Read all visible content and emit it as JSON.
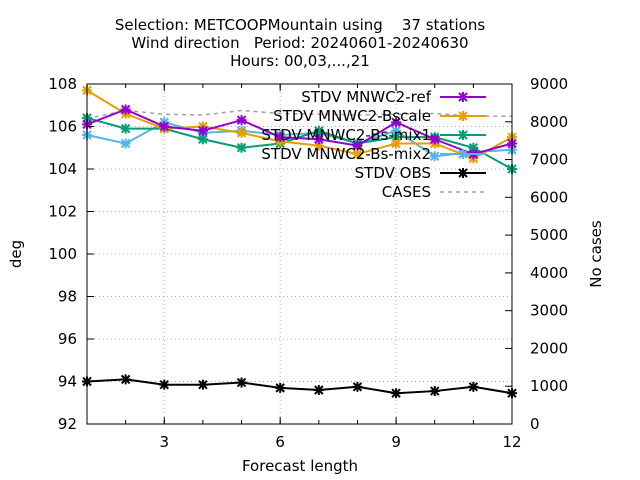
{
  "chart_data": {
    "type": "line",
    "title": [
      "Selection: METCOOPMountain using    37 stations",
      "Wind direction   Period: 20240601-20240630",
      "Hours: 00,03,...,21"
    ],
    "xlabel": "Forecast length",
    "ylabel": "deg",
    "y2label": "No cases",
    "xlim": [
      1,
      12
    ],
    "ylim": [
      92,
      108
    ],
    "y2lim": [
      0,
      9000
    ],
    "xticks": [
      "3",
      "6",
      "9",
      "12"
    ],
    "yticks": [
      "92",
      "94",
      "96",
      "98",
      "100",
      "102",
      "104",
      "106",
      "108"
    ],
    "y2ticks": [
      "0",
      "1000",
      "2000",
      "3000",
      "4000",
      "5000",
      "6000",
      "7000",
      "8000",
      "9000"
    ],
    "grid": true,
    "legend_position": "top-right",
    "x": [
      1,
      2,
      3,
      4,
      5,
      6,
      7,
      8,
      9,
      10,
      11,
      12
    ],
    "series": [
      {
        "name": "STDV MNWC2-ref",
        "color": "#9400d3",
        "axis": "y",
        "values": [
          106.1,
          106.8,
          106.0,
          105.8,
          106.3,
          105.5,
          105.4,
          105.1,
          106.2,
          105.4,
          104.7,
          105.2
        ]
      },
      {
        "name": "STDV MNWC2-Bscale",
        "color": "#e69f00",
        "axis": "y",
        "values": [
          107.7,
          106.6,
          105.9,
          106.0,
          105.7,
          105.3,
          105.1,
          104.7,
          105.2,
          105.2,
          104.5,
          105.5
        ]
      },
      {
        "name": "STDV MNWC2-Bs-mix1",
        "color": "#009e73",
        "axis": "y",
        "values": [
          106.4,
          105.9,
          105.9,
          105.4,
          105.0,
          105.2,
          105.8,
          105.2,
          105.5,
          105.5,
          105.0,
          104.0
        ]
      },
      {
        "name": "STDV MNWC2-Bs-mix2",
        "color": "#56b4e9",
        "axis": "y",
        "values": [
          105.6,
          105.2,
          106.2,
          105.7,
          105.8,
          105.6,
          105.7,
          105.2,
          105.8,
          104.6,
          104.8,
          104.9
        ]
      },
      {
        "name": "STDV OBS",
        "color": "#000000",
        "axis": "y",
        "values": [
          94.0,
          94.1,
          93.85,
          93.85,
          93.95,
          93.7,
          93.6,
          93.75,
          93.45,
          93.55,
          93.75,
          93.45
        ]
      },
      {
        "name": "CASES",
        "color": "#a0a0a0",
        "axis": "y2",
        "dashed": true,
        "values": [
          8080,
          8300,
          8200,
          8180,
          8300,
          8220,
          8200,
          8180,
          8200,
          8220,
          8150,
          8150
        ]
      }
    ]
  }
}
